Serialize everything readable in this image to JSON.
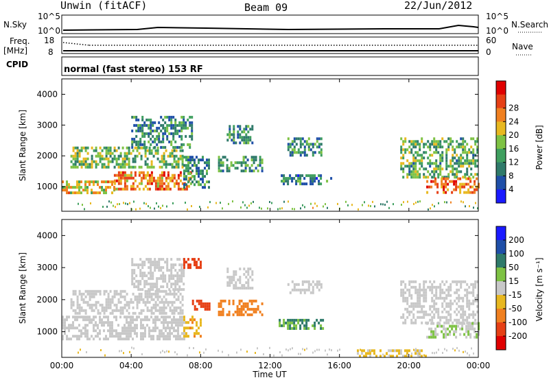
{
  "header": {
    "station": "Unwin (fitACF)",
    "beam": "Beam 09",
    "date": "22/Jun/2012"
  },
  "summary_panels": {
    "nsky_label": "N.Sky",
    "nsky_ticks": [
      "10^5",
      "10^0"
    ],
    "nsearch_label": "N.Search",
    "nsearch_ticks": [
      "10^5",
      "10^0"
    ],
    "freq_label": "Freq.",
    "freq_unit": "[MHz]",
    "freq_ticks": [
      "18",
      "8"
    ],
    "nave_label": "Nave",
    "nave_ticks": [
      "60",
      "0"
    ],
    "cpid_label": "CPID",
    "cpid_text": "normal (fast stereo) 153 RF"
  },
  "chart_data": [
    {
      "type": "heatmap",
      "name": "power",
      "ylabel": "Slant Range [km]",
      "ylim": [
        200,
        4500
      ],
      "yticks": [
        1000,
        2000,
        3000,
        4000
      ],
      "xlim_hours": [
        0,
        24
      ],
      "colorbar": {
        "label": "Power [dB]",
        "range": [
          0,
          32
        ],
        "ticks": [
          "4",
          "8",
          "12",
          "16",
          "20",
          "24",
          "28"
        ],
        "colors": [
          "#1a1aff",
          "#1f4fa8",
          "#2f7a6a",
          "#3f9f5f",
          "#7ec244",
          "#e8b820",
          "#f08020",
          "#e64015",
          "#e00000"
        ]
      },
      "echo_regions": [
        {
          "t0": 0.0,
          "t1": 3.0,
          "r0": 800,
          "r1": 1200,
          "level": 0.6
        },
        {
          "t0": 3.0,
          "t1": 7.5,
          "r0": 900,
          "r1": 1500,
          "level": 0.75
        },
        {
          "t0": 0.5,
          "t1": 7.0,
          "r0": 1600,
          "r1": 2300,
          "level": 0.45
        },
        {
          "t0": 4.0,
          "t1": 7.5,
          "r0": 2300,
          "r1": 3300,
          "level": 0.3
        },
        {
          "t0": 7.0,
          "t1": 8.5,
          "r0": 1000,
          "r1": 2000,
          "level": 0.3
        },
        {
          "t0": 9.0,
          "t1": 11.5,
          "r0": 1500,
          "r1": 2000,
          "level": 0.35
        },
        {
          "t0": 9.5,
          "t1": 11.0,
          "r0": 2400,
          "r1": 3000,
          "level": 0.3
        },
        {
          "t0": 12.5,
          "t1": 15.5,
          "r0": 1100,
          "r1": 1400,
          "level": 0.25
        },
        {
          "t0": 13.0,
          "t1": 15.0,
          "r0": 2000,
          "r1": 2600,
          "level": 0.3
        },
        {
          "t0": 19.5,
          "t1": 24.0,
          "r0": 1300,
          "r1": 2600,
          "level": 0.4
        },
        {
          "t0": 21.0,
          "t1": 24.0,
          "r0": 800,
          "r1": 1300,
          "level": 0.8
        }
      ]
    },
    {
      "type": "heatmap",
      "name": "velocity",
      "ylabel": "Slant Range [km]",
      "ylim": [
        200,
        4500
      ],
      "yticks": [
        1000,
        2000,
        3000,
        4000
      ],
      "xlim_hours": [
        0,
        24
      ],
      "xticks": [
        "00:00",
        "04:00",
        "08:00",
        "12:00",
        "16:00",
        "20:00",
        "00:00"
      ],
      "xlabel": "Time UT",
      "colorbar": {
        "label": "Velocity [m s⁻¹]",
        "range": [
          -250,
          250
        ],
        "ticks": [
          "200",
          "100",
          "50",
          "15",
          "-15",
          "-50",
          "-100",
          "-200"
        ],
        "colors": [
          "#1a1aff",
          "#1f4fa8",
          "#2f7a6a",
          "#7ec244",
          "#c8c8c8",
          "#e8b820",
          "#f08020",
          "#e64015",
          "#e00000"
        ]
      },
      "echo_regions": [
        {
          "t0": 0.0,
          "t1": 7.0,
          "r0": 800,
          "r1": 1500,
          "velocity": 0
        },
        {
          "t0": 0.5,
          "t1": 7.0,
          "r0": 1600,
          "r1": 2300,
          "velocity": 0
        },
        {
          "t0": 4.0,
          "t1": 7.0,
          "r0": 2300,
          "r1": 3300,
          "velocity": 0
        },
        {
          "t0": 7.0,
          "t1": 8.0,
          "r0": 3000,
          "r1": 3300,
          "velocity": -200
        },
        {
          "t0": 7.0,
          "t1": 8.0,
          "r0": 900,
          "r1": 1500,
          "velocity": -80
        },
        {
          "t0": 7.5,
          "t1": 8.5,
          "r0": 1700,
          "r1": 2000,
          "velocity": -200
        },
        {
          "t0": 9.0,
          "t1": 11.5,
          "r0": 1500,
          "r1": 2000,
          "velocity": -120
        },
        {
          "t0": 9.5,
          "t1": 11.0,
          "r0": 2400,
          "r1": 3000,
          "velocity": 0
        },
        {
          "t0": 12.5,
          "t1": 15.0,
          "r0": 1100,
          "r1": 1400,
          "velocity": 100
        },
        {
          "t0": 13.0,
          "t1": 15.0,
          "r0": 2200,
          "r1": 2600,
          "velocity": 0
        },
        {
          "t0": 19.5,
          "t1": 24.0,
          "r0": 1300,
          "r1": 2600,
          "velocity": 0
        },
        {
          "t0": 21.0,
          "t1": 24.0,
          "r0": 800,
          "r1": 1300,
          "velocity": 30
        },
        {
          "t0": 17.0,
          "t1": 21.0,
          "r0": 250,
          "r1": 450,
          "velocity": -40
        }
      ]
    }
  ]
}
